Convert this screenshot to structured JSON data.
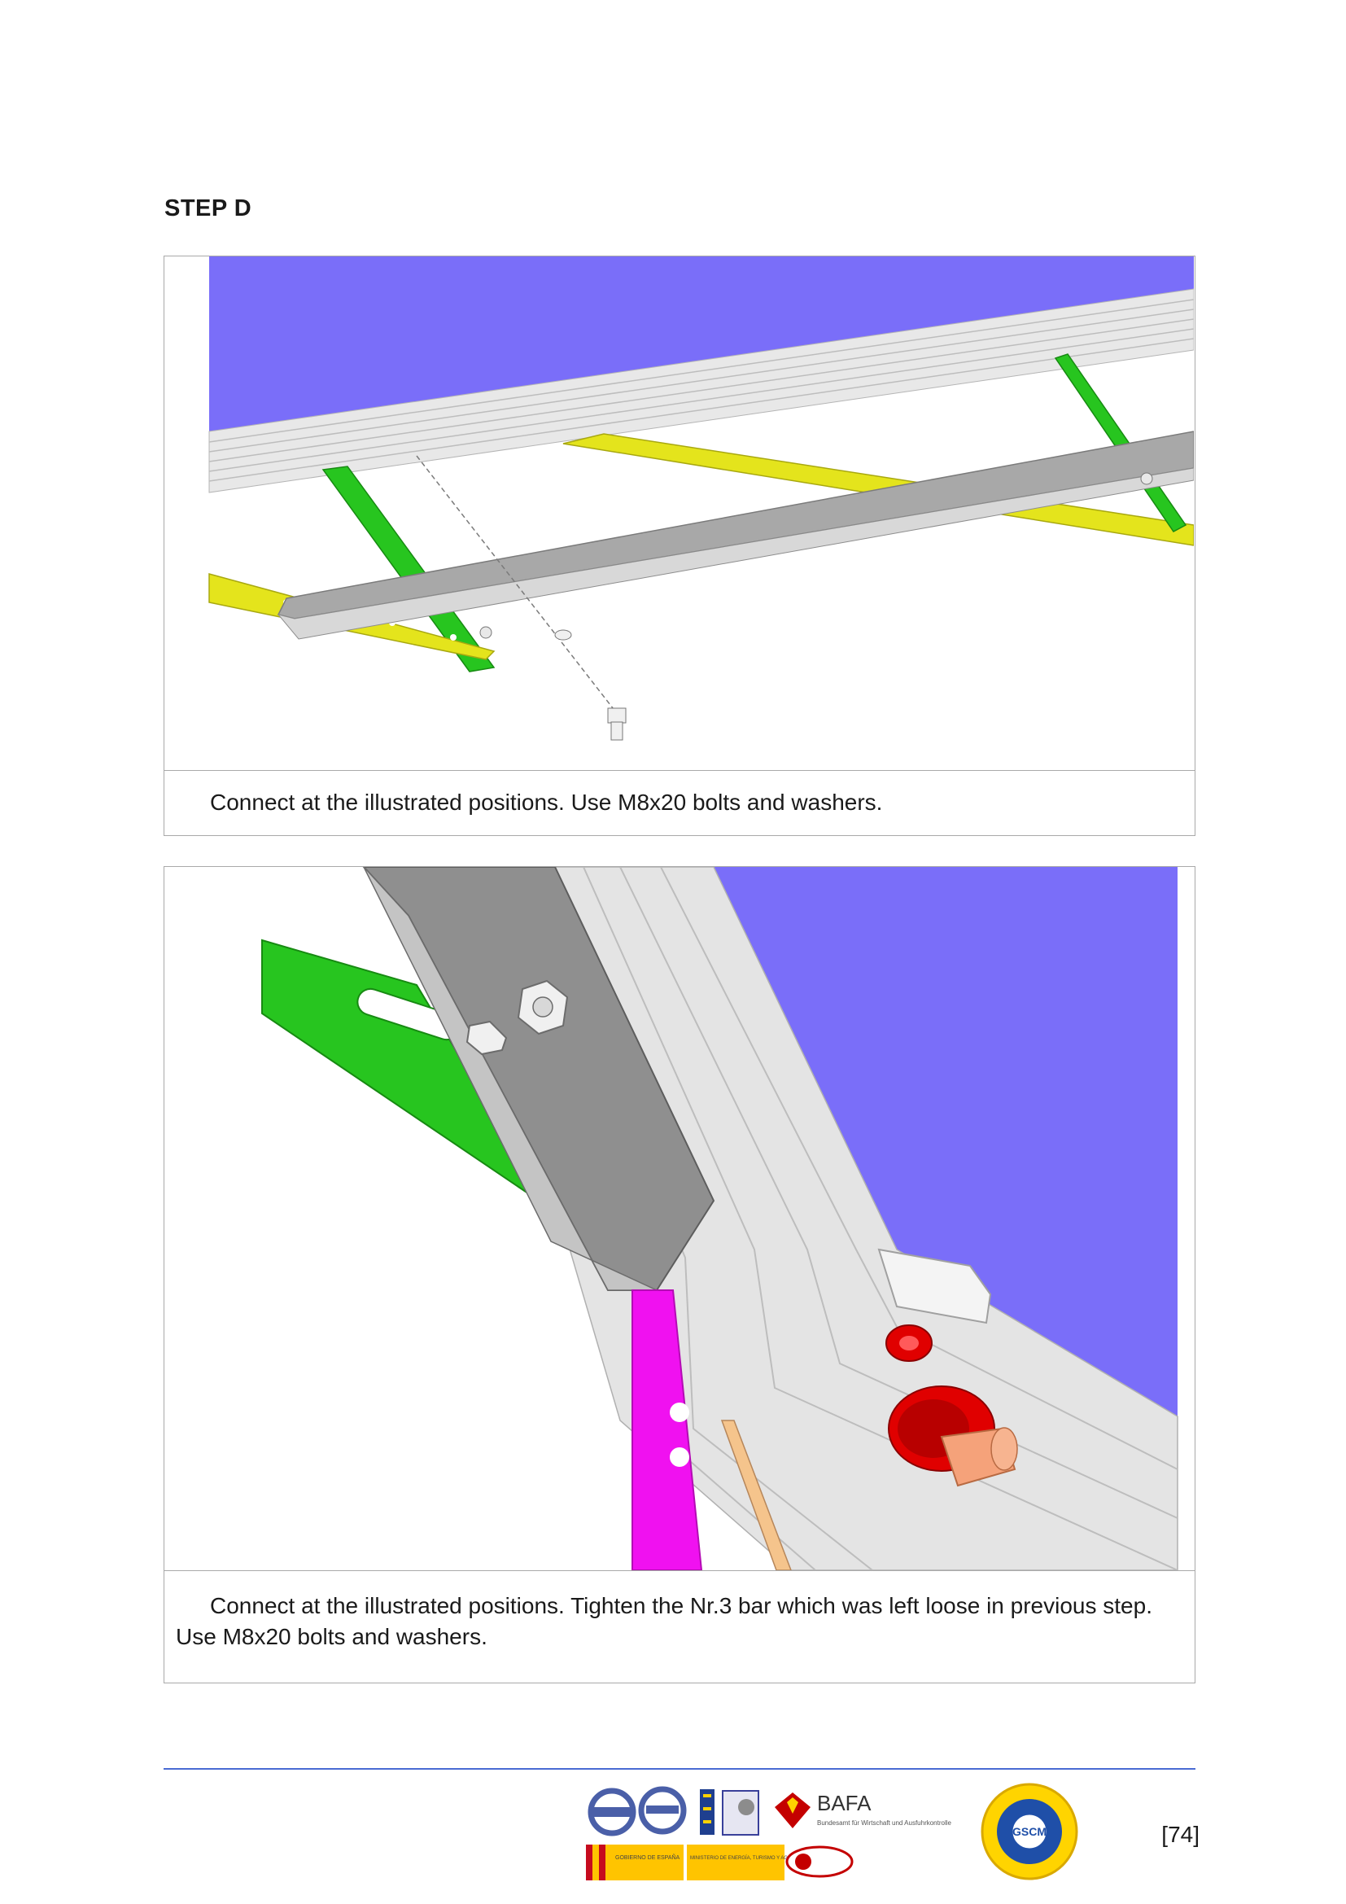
{
  "step_heading": "STEP D",
  "figures": [
    {
      "caption": "Connect at the illustrated positions. Use M8x20 bolts and washers."
    },
    {
      "caption": "Connect at the illustrated positions. Tighten the Nr.3 bar which was left loose in previous step. Use M8x20 bolts and washers."
    }
  ],
  "footer": {
    "page_number": "[74]",
    "logos": {
      "bafa_name": "BAFA",
      "bafa_subtitle": "Bundesamt für Wirtschaft und Ausfuhrkontrolle",
      "gobierno_label": "GOBIERNO DE ESPAÑA",
      "ministerio_label": "MINISTERIO DE ENERGÍA, TURISMO Y AGENDA DIGITAL",
      "gscm_label": "GSCM"
    }
  },
  "colors": {
    "rule": "#4a6bd3",
    "panel_purple": "#7a6ef9",
    "green_bar": "#27c51f",
    "yellow_bar": "#e4e41c",
    "gray_bar": "#9c9c9c",
    "magenta_bar": "#f011f0",
    "red_fitting": "#e00000"
  }
}
